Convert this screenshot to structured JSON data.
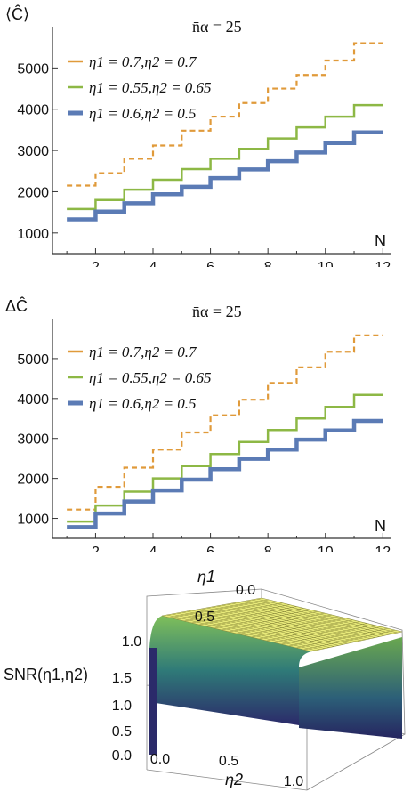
{
  "chart_data": [
    {
      "type": "line",
      "title": "n̄α = 25",
      "ylabel": "⟨Ĉ⟩",
      "xlabel": "N",
      "xlim": [
        0.5,
        12.3
      ],
      "ylim": [
        500,
        6000
      ],
      "xticks": [
        "2",
        "4",
        "6",
        "8",
        "10",
        "12"
      ],
      "yticks": [
        "1000",
        "2000",
        "3000",
        "4000",
        "5000"
      ],
      "x": [
        1,
        2,
        3,
        4,
        5,
        6,
        7,
        8,
        9,
        10,
        11,
        12
      ],
      "series": [
        {
          "name": "η1 = 0.7,η2 = 0.7",
          "color": "#e09a3a",
          "style": "dashed",
          "values": [
            2150,
            2450,
            2800,
            3120,
            3480,
            3820,
            4150,
            4500,
            4830,
            5180,
            5600,
            5600
          ]
        },
        {
          "name": "η1 = 0.55,η2 = 0.65",
          "color": "#8db845",
          "style": "solid",
          "values": [
            1580,
            1800,
            2050,
            2290,
            2550,
            2800,
            3040,
            3290,
            3560,
            3820,
            4100,
            4100
          ]
        },
        {
          "name": "η1 = 0.6,η2 = 0.5",
          "color": "#5b7bb5",
          "style": "thick",
          "values": [
            1330,
            1520,
            1720,
            1940,
            2120,
            2330,
            2540,
            2740,
            2950,
            3180,
            3440,
            3440
          ]
        }
      ]
    },
    {
      "type": "line",
      "title": "n̄α = 25",
      "ylabel": "ΔĈ",
      "xlabel": "N",
      "xlim": [
        0.5,
        12.3
      ],
      "ylim": [
        500,
        6000
      ],
      "xticks": [
        "2",
        "4",
        "6",
        "8",
        "10",
        "12"
      ],
      "yticks": [
        "1000",
        "2000",
        "3000",
        "4000",
        "5000"
      ],
      "x": [
        1,
        2,
        3,
        4,
        5,
        6,
        7,
        8,
        9,
        10,
        11,
        12
      ],
      "series": [
        {
          "name": "η1 = 0.7,η2 = 0.7",
          "color": "#e09a3a",
          "style": "dashed",
          "values": [
            1220,
            1790,
            2270,
            2720,
            3150,
            3580,
            3970,
            4390,
            4780,
            5170,
            5580,
            5580
          ]
        },
        {
          "name": "η1 = 0.55,η2 = 0.65",
          "color": "#8db845",
          "style": "solid",
          "values": [
            920,
            1320,
            1670,
            2000,
            2310,
            2610,
            2910,
            3210,
            3500,
            3790,
            4090,
            4090
          ]
        },
        {
          "name": "η1 = 0.6,η2 = 0.5",
          "color": "#5b7bb5",
          "style": "thick",
          "values": [
            780,
            1120,
            1420,
            1700,
            1970,
            2230,
            2490,
            2720,
            2970,
            3200,
            3440,
            3440
          ]
        }
      ]
    },
    {
      "type": "surface",
      "zlabel": "SNR(η1,η2)",
      "xlabel": "η2",
      "ylabel": "η1",
      "x_ticks": [
        "0.0",
        "0.5",
        "1.0"
      ],
      "y_ticks": [
        "1.0",
        "0.5",
        "0.0"
      ],
      "z_ticks": [
        "0.0",
        "0.5",
        "1.0",
        "1.5"
      ],
      "plateau": 1.5,
      "colors": [
        "#e8ea7a",
        "#5b9a6a",
        "#2e2d6e"
      ]
    }
  ]
}
